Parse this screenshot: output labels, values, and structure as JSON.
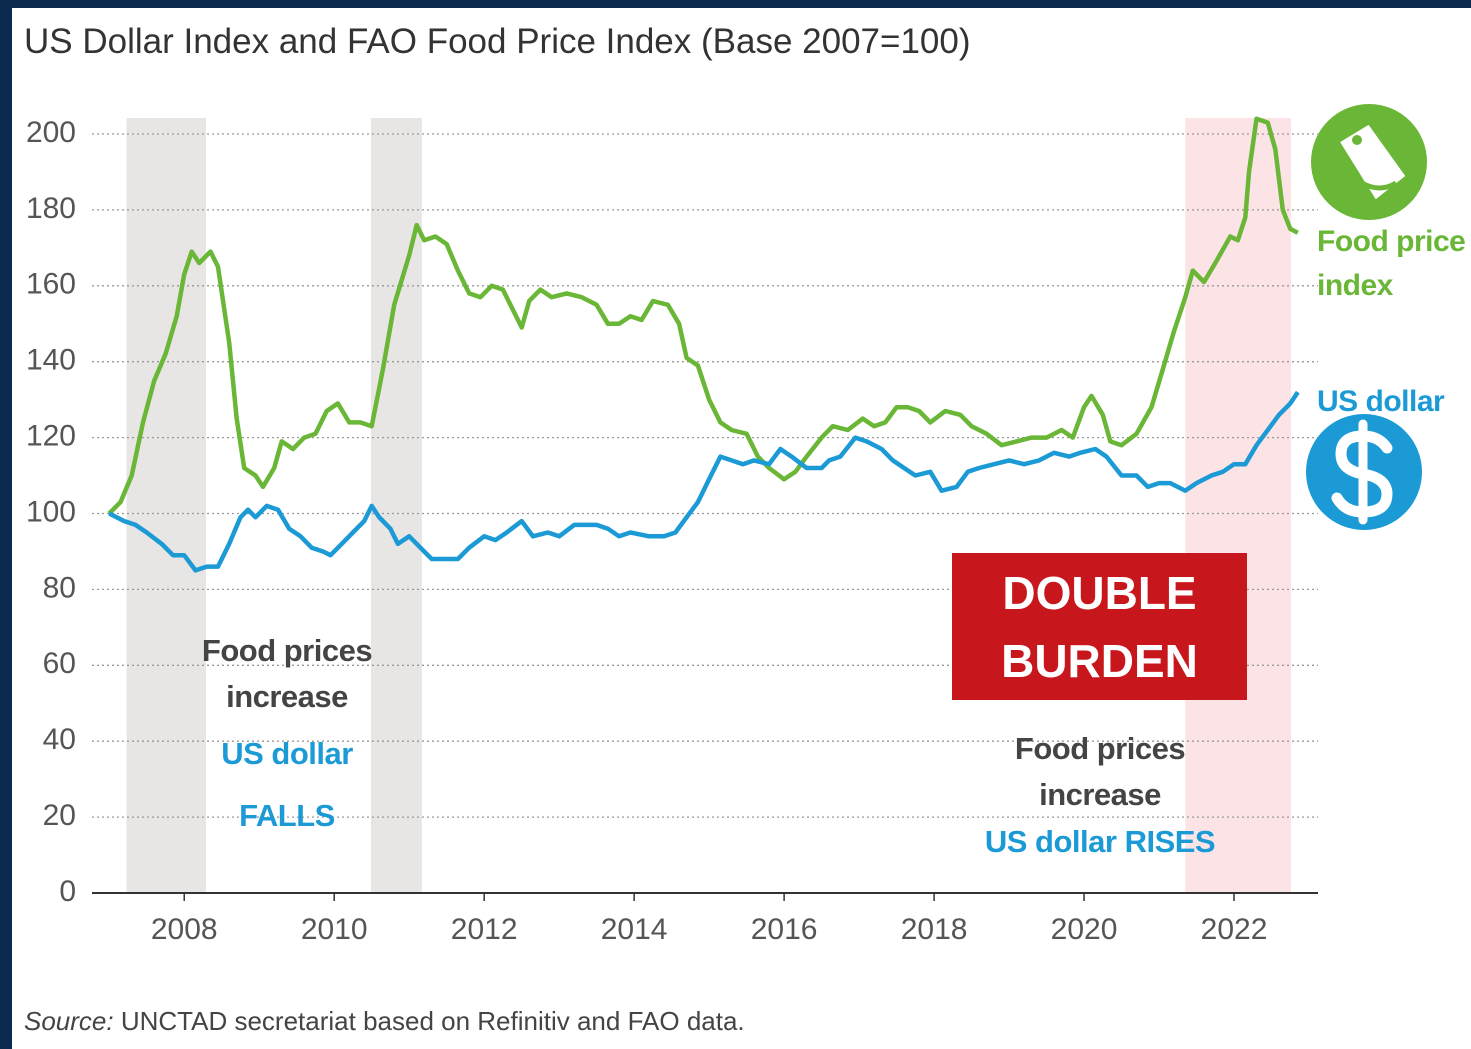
{
  "chart_data": {
    "type": "line",
    "title": "US Dollar Index and FAO Food Price Index (Base 2007=100)",
    "xlim": [
      2006.77,
      2023.12
    ],
    "xticks": [
      2008,
      2010,
      2012,
      2014,
      2016,
      2018,
      2020,
      2022
    ],
    "ylim": [
      0,
      200
    ],
    "yticks": [
      0,
      20,
      40,
      60,
      80,
      100,
      120,
      140,
      160,
      180,
      200
    ],
    "grid": true,
    "shaded_periods": [
      {
        "start": 2007.23,
        "end": 2008.29,
        "color": "#e8e6e4"
      },
      {
        "start": 2010.49,
        "end": 2011.17,
        "color": "#e8e6e4"
      },
      {
        "start": 2021.35,
        "end": 2022.76,
        "color": "#fbe3e6"
      }
    ],
    "series": [
      {
        "name": "Food price index",
        "color": "#6ab636",
        "x": [
          2007.0,
          2007.15,
          2007.3,
          2007.45,
          2007.6,
          2007.75,
          2007.9,
          2008.0,
          2008.1,
          2008.2,
          2008.35,
          2008.45,
          2008.6,
          2008.7,
          2008.8,
          2008.95,
          2009.05,
          2009.2,
          2009.3,
          2009.45,
          2009.6,
          2009.75,
          2009.9,
          2010.05,
          2010.2,
          2010.35,
          2010.5,
          2010.65,
          2010.8,
          2011.0,
          2011.1,
          2011.2,
          2011.35,
          2011.5,
          2011.65,
          2011.8,
          2011.95,
          2012.1,
          2012.25,
          2012.4,
          2012.5,
          2012.6,
          2012.75,
          2012.9,
          2013.1,
          2013.3,
          2013.5,
          2013.65,
          2013.8,
          2013.95,
          2014.1,
          2014.25,
          2014.45,
          2014.6,
          2014.7,
          2014.85,
          2015.0,
          2015.15,
          2015.3,
          2015.5,
          2015.65,
          2015.8,
          2016.0,
          2016.15,
          2016.3,
          2016.5,
          2016.65,
          2016.85,
          2017.05,
          2017.2,
          2017.35,
          2017.5,
          2017.65,
          2017.8,
          2017.95,
          2018.15,
          2018.35,
          2018.5,
          2018.7,
          2018.9,
          2019.1,
          2019.3,
          2019.5,
          2019.7,
          2019.85,
          2020.0,
          2020.1,
          2020.25,
          2020.35,
          2020.5,
          2020.7,
          2020.9,
          2021.05,
          2021.2,
          2021.35,
          2021.45,
          2021.6,
          2021.75,
          2021.95,
          2022.05,
          2022.15,
          2022.2,
          2022.3,
          2022.45,
          2022.55,
          2022.65,
          2022.75,
          2022.85
        ],
        "values": [
          100,
          103,
          110,
          124,
          135,
          142,
          152,
          163,
          169,
          166,
          169,
          165,
          145,
          125,
          112,
          110,
          107,
          112,
          119,
          117,
          120,
          121,
          127,
          129,
          124,
          124,
          123,
          138,
          155,
          168,
          176,
          172,
          173,
          171,
          164,
          158,
          157,
          160,
          159,
          153,
          149,
          156,
          159,
          157,
          158,
          157,
          155,
          150,
          150,
          152,
          151,
          156,
          155,
          150,
          141,
          139,
          130,
          124,
          122,
          121,
          115,
          112,
          109,
          111,
          115,
          120,
          123,
          122,
          125,
          123,
          124,
          128,
          128,
          127,
          124,
          127,
          126,
          123,
          121,
          118,
          119,
          120,
          120,
          122,
          120,
          128,
          131,
          126,
          119,
          118,
          121,
          128,
          138,
          148,
          157,
          164,
          161,
          166,
          173,
          172,
          178,
          190,
          204,
          203,
          196,
          180,
          175,
          174
        ]
      },
      {
        "name": "US dollar",
        "color": "#1b9ad6",
        "x": [
          2007.0,
          2007.2,
          2007.35,
          2007.5,
          2007.7,
          2007.85,
          2008.0,
          2008.15,
          2008.3,
          2008.45,
          2008.6,
          2008.75,
          2008.85,
          2008.95,
          2009.1,
          2009.25,
          2009.4,
          2009.55,
          2009.7,
          2009.85,
          2009.95,
          2010.1,
          2010.25,
          2010.4,
          2010.5,
          2010.6,
          2010.75,
          2010.85,
          2011.0,
          2011.15,
          2011.3,
          2011.5,
          2011.65,
          2011.8,
          2012.0,
          2012.15,
          2012.3,
          2012.5,
          2012.65,
          2012.85,
          2013.0,
          2013.2,
          2013.35,
          2013.5,
          2013.65,
          2013.8,
          2013.95,
          2014.2,
          2014.4,
          2014.55,
          2014.7,
          2014.85,
          2015.0,
          2015.15,
          2015.3,
          2015.45,
          2015.6,
          2015.8,
          2015.95,
          2016.1,
          2016.3,
          2016.5,
          2016.6,
          2016.75,
          2016.95,
          2017.1,
          2017.3,
          2017.45,
          2017.6,
          2017.75,
          2017.95,
          2018.1,
          2018.3,
          2018.45,
          2018.6,
          2018.8,
          2019.0,
          2019.2,
          2019.4,
          2019.6,
          2019.8,
          2019.95,
          2020.15,
          2020.3,
          2020.5,
          2020.7,
          2020.85,
          2021.0,
          2021.15,
          2021.35,
          2021.5,
          2021.7,
          2021.85,
          2022.0,
          2022.15,
          2022.3,
          2022.45,
          2022.6,
          2022.75,
          2022.85
        ],
        "values": [
          100,
          98,
          97,
          95,
          92,
          89,
          89,
          85,
          86,
          86,
          92,
          99,
          101,
          99,
          102,
          101,
          96,
          94,
          91,
          90,
          89,
          92,
          95,
          98,
          102,
          99,
          96,
          92,
          94,
          91,
          88,
          88,
          88,
          91,
          94,
          93,
          95,
          98,
          94,
          95,
          94,
          97,
          97,
          97,
          96,
          94,
          95,
          94,
          94,
          95,
          99,
          103,
          109,
          115,
          114,
          113,
          114,
          113,
          117,
          115,
          112,
          112,
          114,
          115,
          120,
          119,
          117,
          114,
          112,
          110,
          111,
          106,
          107,
          111,
          112,
          113,
          114,
          113,
          114,
          116,
          115,
          116,
          117,
          115,
          110,
          110,
          107,
          108,
          108,
          106,
          108,
          110,
          111,
          113,
          113,
          118,
          122,
          126,
          129,
          132
        ]
      }
    ],
    "annotations": {
      "left_food": "Food prices increase",
      "left_dollar": "US dollar FALLS",
      "box": "DOUBLE BURDEN",
      "right_food": "Food prices increase",
      "right_dollar": "US dollar RISES"
    },
    "source_label": "Source:",
    "source": "UNCTAD secretariat based on Refinitiv and FAO data."
  }
}
